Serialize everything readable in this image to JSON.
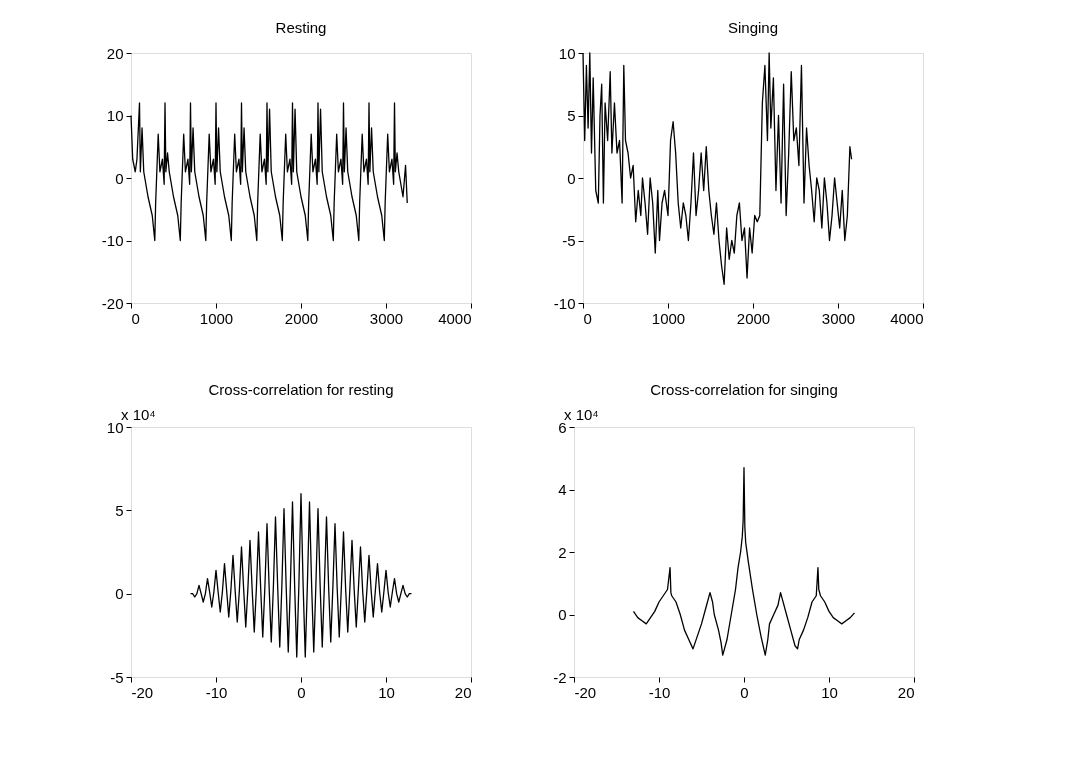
{
  "chart_data": [
    {
      "type": "line",
      "title": "Resting",
      "xlim": [
        0,
        4000
      ],
      "xticks": [
        0,
        1000,
        2000,
        3000,
        4000
      ],
      "ylim": [
        -20,
        20
      ],
      "yticks": [
        -20,
        -10,
        0,
        10,
        20
      ],
      "x": [
        0,
        20,
        50,
        70,
        100,
        110,
        130,
        150,
        200,
        250,
        280,
        290,
        320,
        340,
        370,
        390,
        400,
        410,
        430,
        450,
        500,
        550,
        580,
        590,
        620,
        640,
        670,
        690,
        700,
        710,
        730,
        750,
        800,
        850,
        880,
        890,
        920,
        940,
        970,
        990,
        1000,
        1010,
        1030,
        1050,
        1100,
        1150,
        1180,
        1190,
        1220,
        1240,
        1270,
        1290,
        1300,
        1310,
        1330,
        1350,
        1400,
        1450,
        1480,
        1490,
        1520,
        1540,
        1570,
        1590,
        1600,
        1610,
        1630,
        1650,
        1700,
        1750,
        1780,
        1790,
        1820,
        1840,
        1870,
        1890,
        1900,
        1910,
        1930,
        1950,
        2000,
        2050,
        2080,
        2090,
        2120,
        2140,
        2170,
        2190,
        2200,
        2210,
        2230,
        2250,
        2300,
        2350,
        2380,
        2390,
        2420,
        2440,
        2470,
        2490,
        2500,
        2510,
        2530,
        2550,
        2600,
        2650,
        2680,
        2690,
        2720,
        2740,
        2770,
        2790,
        2800,
        2810,
        2830,
        2850,
        2900,
        2950,
        2980,
        2990,
        3020,
        3040,
        3070,
        3090,
        3100,
        3110,
        3130,
        3150,
        3200,
        3230,
        3250
      ],
      "series": [
        {
          "color": "#000000",
          "values": [
            10,
            3,
            1,
            3,
            12,
            1,
            8,
            1,
            -3,
            -6,
            -10,
            -4,
            7,
            1,
            3,
            -1,
            12,
            1,
            4,
            1,
            -3,
            -6,
            -10,
            -4,
            7,
            1,
            3,
            -1,
            12,
            1,
            8,
            1,
            -3,
            -6,
            -10,
            -4,
            7,
            1,
            3,
            -1,
            12,
            1,
            8,
            1,
            -3,
            -6,
            -10,
            -4,
            7,
            1,
            3,
            -1,
            12,
            1,
            8,
            1,
            -3,
            -6,
            -10,
            -4,
            7,
            1,
            3,
            -1,
            12,
            1,
            11,
            1,
            -3,
            -6,
            -10,
            -4,
            7,
            1,
            3,
            -1,
            12,
            1,
            11,
            1,
            -3,
            -6,
            -10,
            -4,
            7,
            1,
            3,
            -1,
            12,
            1,
            11,
            1,
            -3,
            -6,
            -10,
            -4,
            7,
            1,
            3,
            -1,
            12,
            1,
            8,
            1,
            -3,
            -6,
            -10,
            -4,
            7,
            1,
            3,
            -1,
            12,
            1,
            8,
            1,
            -3,
            -6,
            -10,
            -4,
            7,
            1,
            3,
            -1,
            12,
            1,
            4,
            1,
            -3,
            2,
            -4
          ]
        }
      ]
    },
    {
      "type": "line",
      "title": "Singing",
      "xlim": [
        0,
        4000
      ],
      "xticks": [
        0,
        1000,
        2000,
        3000,
        4000
      ],
      "ylim": [
        -10,
        10
      ],
      "yticks": [
        -10,
        -5,
        0,
        5,
        10
      ],
      "x": [
        0,
        20,
        40,
        60,
        80,
        100,
        120,
        150,
        180,
        200,
        220,
        240,
        260,
        290,
        320,
        340,
        370,
        400,
        430,
        460,
        480,
        500,
        530,
        560,
        590,
        620,
        650,
        680,
        700,
        730,
        760,
        790,
        820,
        850,
        880,
        900,
        930,
        960,
        1000,
        1030,
        1060,
        1090,
        1120,
        1150,
        1180,
        1210,
        1240,
        1270,
        1300,
        1330,
        1360,
        1390,
        1420,
        1450,
        1480,
        1510,
        1540,
        1570,
        1600,
        1630,
        1660,
        1690,
        1720,
        1750,
        1780,
        1810,
        1840,
        1870,
        1900,
        1930,
        1960,
        1990,
        2020,
        2050,
        2080,
        2110,
        2140,
        2170,
        2190,
        2210,
        2240,
        2270,
        2300,
        2330,
        2360,
        2390,
        2420,
        2450,
        2480,
        2510,
        2540,
        2570,
        2600,
        2630,
        2660,
        2690,
        2720,
        2750,
        2780,
        2810,
        2840,
        2870,
        2900,
        2930,
        2960,
        2990,
        3020,
        3050,
        3080,
        3110,
        3140,
        3160
      ],
      "series": [
        {
          "color": "#000000",
          "values": [
            10,
            3,
            9,
            4,
            10,
            2,
            8,
            -1,
            -2,
            5,
            7.5,
            -2,
            6,
            3,
            8.5,
            2,
            6,
            2,
            3,
            -2,
            9,
            3,
            2,
            0,
            1,
            -3.5,
            -1,
            -3,
            0,
            -2,
            -4.5,
            0,
            -2,
            -6,
            -1,
            -5,
            -2,
            -1,
            -3,
            3,
            4.5,
            2,
            -2,
            -4,
            -2,
            -3,
            -5,
            -2,
            2,
            -3,
            -1,
            2,
            -1,
            2.5,
            -1,
            -3,
            -4.5,
            -2,
            -5,
            -7,
            -8.5,
            -4,
            -6.5,
            -5,
            -6,
            -3,
            -2,
            -5,
            -4,
            -8,
            -4,
            -6,
            -3,
            -3.5,
            -3,
            6,
            9,
            3,
            10,
            4,
            8,
            -1,
            5,
            -2,
            7.5,
            -3,
            2,
            8.5,
            3,
            4,
            1,
            9,
            -2,
            4,
            1,
            -1,
            -3.5,
            0,
            -1,
            -4,
            0,
            -2,
            -5,
            -3,
            0,
            -2,
            -4,
            -1,
            -5,
            -3,
            2.5,
            1.5
          ]
        }
      ]
    },
    {
      "type": "line",
      "title": "Cross-correlation for resting",
      "annotations": [
        "x 10⁴"
      ],
      "xlim": [
        -20,
        20
      ],
      "xticks": [
        -20,
        -10,
        0,
        10,
        20
      ],
      "ylim": [
        -5,
        10
      ],
      "yticks": [
        -5,
        0,
        5,
        10
      ],
      "x": [
        -13,
        -12.75,
        -12.5,
        -12.25,
        -12,
        -11.75,
        -11.5,
        -11.25,
        -11,
        -10.75,
        -10.5,
        -10.25,
        -10,
        -9.75,
        -9.5,
        -9.25,
        -9,
        -8.75,
        -8.5,
        -8.25,
        -8,
        -7.75,
        -7.5,
        -7.25,
        -7,
        -6.75,
        -6.5,
        -6.25,
        -6,
        -5.75,
        -5.5,
        -5.25,
        -5,
        -4.75,
        -4.5,
        -4.25,
        -4,
        -3.75,
        -3.5,
        -3.25,
        -3,
        -2.75,
        -2.5,
        -2.25,
        -2,
        -1.75,
        -1.5,
        -1.25,
        -1,
        -0.75,
        -0.5,
        -0.25,
        0,
        0.25,
        0.5,
        0.75,
        1,
        1.25,
        1.5,
        1.75,
        2,
        2.25,
        2.5,
        2.75,
        3,
        3.25,
        3.5,
        3.75,
        4,
        4.25,
        4.5,
        4.75,
        5,
        5.25,
        5.5,
        5.75,
        6,
        6.25,
        6.5,
        6.75,
        7,
        7.25,
        7.5,
        7.75,
        8,
        8.25,
        8.5,
        8.75,
        9,
        9.25,
        9.5,
        9.75,
        10,
        10.25,
        10.5,
        10.75,
        11,
        11.25,
        11.5,
        11.75,
        12,
        12.25,
        12.5,
        12.75,
        13
      ],
      "series": [
        {
          "color": "#000000",
          "values": [
            0,
            0,
            -0.2,
            0,
            0.5,
            0,
            -0.5,
            0,
            0.9,
            0.1,
            -0.8,
            0.1,
            1.4,
            0.1,
            -1.1,
            0.1,
            1.8,
            0.2,
            -1.4,
            0.2,
            2.3,
            0.2,
            -1.7,
            0.2,
            2.8,
            0.3,
            -2.0,
            0.3,
            3.2,
            0.3,
            -2.3,
            0.3,
            3.7,
            0.4,
            -2.6,
            0.4,
            4.2,
            0.4,
            -2.9,
            0.4,
            4.6,
            0.5,
            -3.2,
            0.5,
            5.1,
            0.5,
            -3.5,
            0.5,
            5.5,
            0.5,
            -3.8,
            0.5,
            6.0,
            0.5,
            -3.8,
            0.5,
            5.5,
            0.5,
            -3.5,
            0.5,
            5.1,
            0.5,
            -3.2,
            0.5,
            4.6,
            0.4,
            -2.9,
            0.4,
            4.2,
            0.4,
            -2.6,
            0.4,
            3.7,
            0.3,
            -2.3,
            0.3,
            3.2,
            0.3,
            -2.0,
            0.3,
            2.8,
            0.2,
            -1.7,
            0.2,
            2.3,
            0.2,
            -1.4,
            0.2,
            1.8,
            0.1,
            -1.1,
            0.1,
            1.4,
            0.1,
            -0.8,
            0.1,
            0.9,
            0,
            -0.5,
            0,
            0.5,
            0,
            -0.2,
            0,
            0
          ]
        }
      ]
    },
    {
      "type": "line",
      "title": "Cross-correlation for singing",
      "annotations": [
        "x 10⁴"
      ],
      "xlim": [
        -20,
        20
      ],
      "xticks": [
        -20,
        -10,
        0,
        10,
        20
      ],
      "ylim": [
        -2,
        6
      ],
      "yticks": [
        -2,
        0,
        2,
        4,
        6
      ],
      "x": [
        -13,
        -12.5,
        -12,
        -11.5,
        -11,
        -10.5,
        -10,
        -9.5,
        -9,
        -8.7,
        -8.6,
        -8.5,
        -8,
        -7.5,
        -7,
        -6.5,
        -6,
        -5.5,
        -5,
        -4.5,
        -4,
        -3.7,
        -3.5,
        -3,
        -2.7,
        -2.5,
        -2,
        -1.5,
        -1,
        -0.7,
        -0.4,
        -0.2,
        -0.1,
        0,
        0.1,
        0.2,
        0.5,
        1,
        1.5,
        2,
        2.5,
        2.8,
        3,
        3.5,
        4,
        4.3,
        4.5,
        5,
        5.5,
        6,
        6.3,
        6.5,
        7,
        7.5,
        8,
        8.5,
        8.7,
        8.8,
        9,
        9.5,
        10,
        10.5,
        11,
        11.5,
        12,
        12.5,
        13
      ],
      "series": [
        {
          "color": "#000000",
          "values": [
            0.1,
            -0.1,
            -0.2,
            -0.3,
            -0.1,
            0.1,
            0.4,
            0.6,
            0.8,
            1.5,
            0.7,
            0.6,
            0.4,
            0,
            -0.5,
            -0.8,
            -1.1,
            -0.7,
            -0.3,
            0.2,
            0.7,
            0.4,
            0,
            -0.5,
            -0.9,
            -1.3,
            -0.8,
            0,
            0.8,
            1.5,
            2.0,
            2.5,
            3.0,
            4.7,
            2.8,
            2.3,
            1.7,
            0.8,
            0,
            -0.7,
            -1.3,
            -0.8,
            -0.3,
            0,
            0.3,
            0.7,
            0.5,
            0,
            -0.5,
            -1.0,
            -1.1,
            -0.8,
            -0.5,
            -0.1,
            0.4,
            0.6,
            1.5,
            0.8,
            0.6,
            0.4,
            0.1,
            -0.1,
            -0.2,
            -0.3,
            -0.2,
            -0.1,
            0.05
          ]
        }
      ]
    }
  ]
}
